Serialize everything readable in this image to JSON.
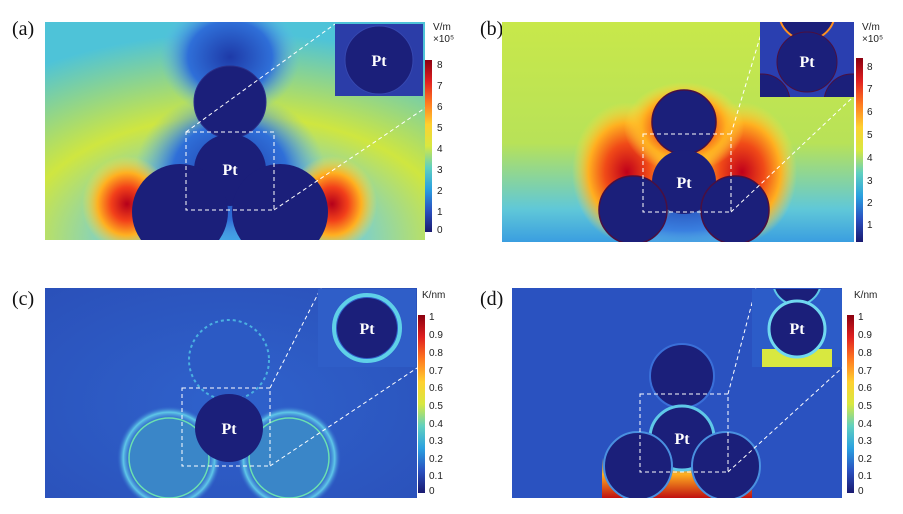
{
  "panels": [
    {
      "letter": "(a)",
      "unit": "V/m",
      "multiplier": "×10⁵",
      "ticks": [
        "8",
        "7",
        "6",
        "5",
        "4",
        "3",
        "2",
        "1",
        "0"
      ],
      "label": "Pt",
      "inset_label": "Pt"
    },
    {
      "letter": "(b)",
      "unit": "V/m",
      "multiplier": "×10⁵",
      "ticks": [
        "8",
        "7",
        "6",
        "5",
        "4",
        "3",
        "2",
        "1"
      ],
      "label": "Pt",
      "inset_label": "Pt"
    },
    {
      "letter": "(c)",
      "unit": "K/nm",
      "multiplier": "",
      "ticks": [
        "1",
        "0.9",
        "0.8",
        "0.7",
        "0.6",
        "0.5",
        "0.4",
        "0.3",
        "0.2",
        "0.1",
        "0"
      ],
      "label": "Pt",
      "inset_label": "Pt"
    },
    {
      "letter": "(d)",
      "unit": "K/nm",
      "multiplier": "",
      "ticks": [
        "1",
        "0.9",
        "0.8",
        "0.7",
        "0.6",
        "0.5",
        "0.4",
        "0.3",
        "0.2",
        "0.1",
        "0"
      ],
      "label": "Pt",
      "inset_label": "Pt"
    }
  ],
  "colors": {
    "particle": "#1b1f7a",
    "field_bg_ab": "#c9e640",
    "field_bg_cd": "#2a58c8"
  }
}
